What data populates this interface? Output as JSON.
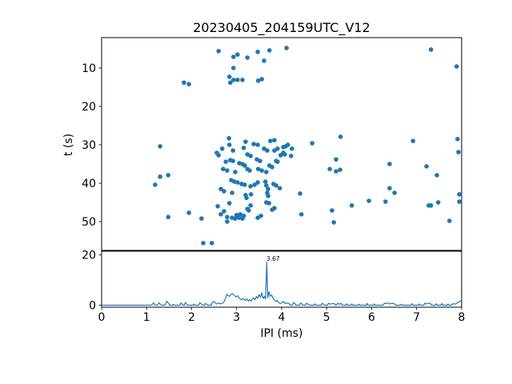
{
  "figure": {
    "title": "20230405_204159UTC_V12",
    "xlabel": "IPI (ms)",
    "ylabel": "t (s)",
    "annotation": "3.67",
    "accent_color": "#1f77b4"
  },
  "chart_data": [
    {
      "type": "scatter",
      "panel": "top",
      "title": "20230405_204159UTC_V12",
      "xlabel": "",
      "ylabel": "t (s)",
      "xlim": [
        0,
        8
      ],
      "ylim": [
        57.5,
        2.1
      ],
      "y_inverted": true,
      "yticks": [
        10,
        20,
        30,
        40,
        50
      ],
      "grid": false,
      "legend": "none",
      "marker_color": "#1f77b4",
      "points": [
        [
          1.83,
          13.8
        ],
        [
          1.94,
          14.2
        ],
        [
          2.6,
          5.6
        ],
        [
          2.93,
          7.1
        ],
        [
          3.02,
          6.5
        ],
        [
          3.24,
          7.3
        ],
        [
          3.47,
          5.8
        ],
        [
          3.61,
          8.1
        ],
        [
          3.73,
          5.4
        ],
        [
          4.11,
          4.8
        ],
        [
          2.93,
          10.0
        ],
        [
          2.84,
          12.3
        ],
        [
          2.86,
          13.8
        ],
        [
          2.93,
          13.1
        ],
        [
          3.02,
          13.1
        ],
        [
          3.13,
          13.1
        ],
        [
          3.48,
          13.3
        ],
        [
          3.56,
          12.9
        ],
        [
          7.32,
          5.2
        ],
        [
          7.89,
          9.6
        ],
        [
          1.3,
          30.4
        ],
        [
          1.19,
          40.4
        ],
        [
          1.3,
          38.3
        ],
        [
          1.48,
          37.9
        ],
        [
          2.56,
          32.1
        ],
        [
          2.6,
          32.7
        ],
        [
          2.83,
          28.3
        ],
        [
          2.84,
          30.0
        ],
        [
          2.68,
          31.0
        ],
        [
          2.92,
          31.5
        ],
        [
          3.16,
          30.8
        ],
        [
          3.2,
          29.2
        ],
        [
          3.38,
          29.8
        ],
        [
          3.47,
          30.0
        ],
        [
          3.24,
          32.5
        ],
        [
          3.31,
          32.9
        ],
        [
          3.45,
          33.8
        ],
        [
          3.52,
          34.2
        ],
        [
          3.06,
          34.8
        ],
        [
          3.13,
          35.0
        ],
        [
          3.18,
          35.4
        ],
        [
          2.86,
          34.0
        ],
        [
          2.92,
          34.2
        ],
        [
          2.76,
          34.4
        ],
        [
          2.7,
          36.3
        ],
        [
          2.79,
          36.7
        ],
        [
          2.97,
          37.1
        ],
        [
          3.24,
          36.3
        ],
        [
          3.29,
          36.7
        ],
        [
          3.48,
          36.3
        ],
        [
          3.56,
          36.7
        ],
        [
          3.66,
          37.1
        ],
        [
          3.73,
          35.4
        ],
        [
          3.79,
          35.8
        ],
        [
          3.88,
          34.2
        ],
        [
          3.91,
          34.4
        ],
        [
          3.98,
          32.7
        ],
        [
          4.04,
          32.1
        ],
        [
          3.84,
          31.5
        ],
        [
          3.91,
          31.0
        ],
        [
          4.09,
          30.4
        ],
        [
          4.14,
          30.0
        ],
        [
          3.75,
          29.0
        ],
        [
          3.84,
          28.8
        ],
        [
          3.61,
          31.0
        ],
        [
          3.68,
          31.5
        ],
        [
          4.04,
          30.6
        ],
        [
          4.23,
          31.0
        ],
        [
          4.07,
          32.5
        ],
        [
          4.21,
          32.9
        ],
        [
          4.68,
          29.6
        ],
        [
          5.31,
          27.9
        ],
        [
          5.21,
          33.8
        ],
        [
          5.07,
          36.3
        ],
        [
          5.21,
          36.9
        ],
        [
          5.3,
          36.5
        ],
        [
          6.4,
          35.0
        ],
        [
          6.92,
          29.0
        ],
        [
          7.22,
          35.6
        ],
        [
          7.45,
          37.9
        ],
        [
          7.91,
          28.5
        ],
        [
          7.93,
          31.9
        ],
        [
          2.88,
          39.2
        ],
        [
          2.95,
          39.6
        ],
        [
          3.02,
          39.8
        ],
        [
          3.11,
          40.2
        ],
        [
          3.18,
          40.4
        ],
        [
          3.31,
          40.8
        ],
        [
          3.4,
          40.4
        ],
        [
          3.47,
          39.8
        ],
        [
          2.65,
          41.5
        ],
        [
          2.72,
          42.1
        ],
        [
          2.9,
          42.5
        ],
        [
          3.2,
          43.1
        ],
        [
          3.64,
          39.6
        ],
        [
          3.66,
          40.6
        ],
        [
          3.7,
          41.5
        ],
        [
          3.68,
          42.5
        ],
        [
          3.7,
          43.3
        ],
        [
          3.82,
          40.2
        ],
        [
          3.88,
          40.6
        ],
        [
          3.96,
          41.3
        ],
        [
          4.41,
          42.7
        ],
        [
          6.4,
          41.3
        ],
        [
          6.51,
          42.5
        ],
        [
          7.95,
          42.9
        ],
        [
          3.22,
          43.8
        ],
        [
          3.32,
          42.9
        ],
        [
          1.48,
          48.8
        ],
        [
          1.94,
          47.7
        ],
        [
          2.22,
          49.2
        ],
        [
          2.58,
          46.0
        ],
        [
          2.65,
          48.1
        ],
        [
          2.72,
          47.3
        ],
        [
          2.79,
          48.8
        ],
        [
          2.79,
          50.0
        ],
        [
          2.84,
          45.2
        ],
        [
          2.9,
          49.0
        ],
        [
          2.97,
          49.2
        ],
        [
          3.0,
          48.3
        ],
        [
          3.06,
          49.0
        ],
        [
          3.08,
          48.1
        ],
        [
          3.13,
          49.2
        ],
        [
          3.16,
          48.5
        ],
        [
          3.24,
          46.7
        ],
        [
          3.27,
          47.1
        ],
        [
          3.31,
          45.8
        ],
        [
          3.47,
          49.0
        ],
        [
          3.54,
          48.5
        ],
        [
          3.66,
          45.0
        ],
        [
          3.72,
          45.2
        ],
        [
          3.79,
          46.9
        ],
        [
          3.84,
          46.5
        ],
        [
          4.44,
          48.1
        ],
        [
          5.12,
          47.1
        ],
        [
          5.16,
          50.2
        ],
        [
          5.56,
          45.8
        ],
        [
          5.94,
          44.6
        ],
        [
          6.31,
          44.8
        ],
        [
          7.27,
          45.8
        ],
        [
          7.32,
          45.8
        ],
        [
          7.48,
          45.0
        ],
        [
          7.73,
          49.8
        ],
        [
          7.95,
          44.8
        ],
        [
          2.26,
          55.6
        ],
        [
          2.45,
          55.6
        ]
      ]
    },
    {
      "type": "line",
      "panel": "bottom",
      "xlabel": "IPI (ms)",
      "ylabel": "",
      "xlim": [
        0,
        8
      ],
      "ylim": [
        -0.8,
        21.4
      ],
      "xticks": [
        0,
        1,
        2,
        3,
        4,
        5,
        6,
        7,
        8
      ],
      "yticks": [
        0,
        20
      ],
      "grid": false,
      "line_color": "#1f77b4",
      "annotation": {
        "text": "3.67",
        "x": 3.67,
        "y": 17.0
      },
      "points": [
        [
          1.12,
          0.2
        ],
        [
          1.15,
          1.0
        ],
        [
          1.18,
          0.2
        ],
        [
          1.25,
          0.3
        ],
        [
          1.28,
          1.0
        ],
        [
          1.31,
          0.2
        ],
        [
          1.42,
          0.5
        ],
        [
          1.45,
          1.6
        ],
        [
          1.5,
          0.4
        ],
        [
          1.6,
          0.3
        ],
        [
          1.76,
          0.9
        ],
        [
          1.8,
          0.3
        ],
        [
          1.86,
          1.1
        ],
        [
          1.9,
          0.3
        ],
        [
          2.05,
          0.4
        ],
        [
          2.18,
          1.0
        ],
        [
          2.22,
          0.5
        ],
        [
          2.3,
          0.7
        ],
        [
          2.34,
          0.3
        ],
        [
          2.46,
          1.3
        ],
        [
          2.5,
          1.5
        ],
        [
          2.53,
          0.8
        ],
        [
          2.56,
          0.5
        ],
        [
          2.6,
          0.9
        ],
        [
          2.64,
          0.5
        ],
        [
          2.68,
          0.7
        ],
        [
          2.72,
          1.3
        ],
        [
          2.75,
          2.6
        ],
        [
          2.78,
          4.3
        ],
        [
          2.81,
          3.9
        ],
        [
          2.84,
          3.5
        ],
        [
          2.87,
          4.1
        ],
        [
          2.9,
          4.6
        ],
        [
          2.93,
          4.2
        ],
        [
          2.96,
          3.7
        ],
        [
          2.99,
          3.3
        ],
        [
          3.02,
          3.8
        ],
        [
          3.05,
          3.0
        ],
        [
          3.08,
          2.5
        ],
        [
          3.11,
          2.1
        ],
        [
          3.14,
          2.7
        ],
        [
          3.17,
          2.2
        ],
        [
          3.2,
          1.8
        ],
        [
          3.23,
          2.5
        ],
        [
          3.26,
          1.7
        ],
        [
          3.29,
          2.2
        ],
        [
          3.32,
          1.6
        ],
        [
          3.35,
          2.4
        ],
        [
          3.38,
          2.9
        ],
        [
          3.41,
          2.2
        ],
        [
          3.44,
          3.5
        ],
        [
          3.47,
          2.7
        ],
        [
          3.5,
          4.3
        ],
        [
          3.53,
          3.1
        ],
        [
          3.56,
          4.9
        ],
        [
          3.59,
          2.7
        ],
        [
          3.62,
          3.5
        ],
        [
          3.645,
          2.5
        ],
        [
          3.67,
          17.0
        ],
        [
          3.695,
          3.0
        ],
        [
          3.72,
          5.3
        ],
        [
          3.75,
          3.5
        ],
        [
          3.78,
          4.1
        ],
        [
          3.81,
          2.7
        ],
        [
          3.84,
          2.1
        ],
        [
          3.87,
          1.5
        ],
        [
          3.9,
          1.9
        ],
        [
          3.93,
          1.1
        ],
        [
          3.96,
          0.7
        ],
        [
          4.0,
          0.9
        ],
        [
          4.04,
          1.5
        ],
        [
          4.08,
          0.6
        ],
        [
          4.13,
          0.9
        ],
        [
          4.18,
          0.4
        ],
        [
          4.26,
          1.1
        ],
        [
          4.3,
          0.5
        ],
        [
          4.42,
          0.9
        ],
        [
          4.46,
          0.4
        ],
        [
          4.55,
          0.8
        ],
        [
          4.6,
          0.3
        ],
        [
          4.74,
          0.5
        ],
        [
          4.9,
          0.8
        ],
        [
          4.94,
          0.3
        ],
        [
          5.04,
          0.8
        ],
        [
          5.08,
          0.4
        ],
        [
          5.14,
          0.7
        ],
        [
          5.18,
          0.5
        ],
        [
          5.24,
          0.8
        ],
        [
          5.28,
          0.4
        ],
        [
          5.33,
          0.7
        ],
        [
          5.45,
          0.6
        ],
        [
          5.56,
          0.5
        ],
        [
          5.72,
          0.4
        ],
        [
          5.9,
          0.7
        ],
        [
          6.06,
          0.5
        ],
        [
          6.28,
          0.8
        ],
        [
          6.32,
          0.6
        ],
        [
          6.36,
          0.9
        ],
        [
          6.4,
          0.5
        ],
        [
          6.46,
          0.8
        ],
        [
          6.52,
          0.4
        ],
        [
          6.66,
          0.4
        ],
        [
          6.9,
          0.6
        ],
        [
          7.06,
          0.5
        ],
        [
          7.18,
          0.8
        ],
        [
          7.22,
          0.5
        ],
        [
          7.26,
          0.8
        ],
        [
          7.31,
          0.6
        ],
        [
          7.44,
          0.6
        ],
        [
          7.56,
          0.7
        ],
        [
          7.7,
          0.5
        ],
        [
          7.8,
          0.6
        ],
        [
          7.85,
          0.4
        ],
        [
          7.9,
          0.9
        ],
        [
          7.95,
          1.4
        ],
        [
          8.0,
          2.0
        ]
      ]
    }
  ]
}
